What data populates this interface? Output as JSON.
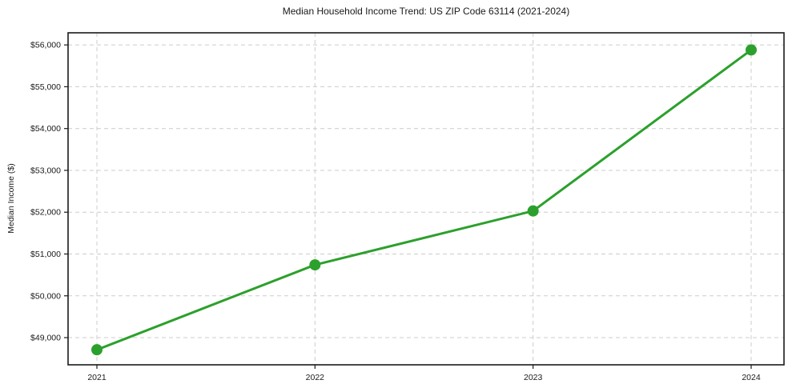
{
  "chart_data": {
    "type": "line",
    "title": "Median Household Income Trend: US ZIP Code 63114 (2021-2024)",
    "xlabel": "",
    "ylabel": "Median Income ($)",
    "categories": [
      "2021",
      "2022",
      "2023",
      "2024"
    ],
    "series": [
      {
        "name": "Median Household Income",
        "values": [
          48710,
          50740,
          52030,
          55880
        ],
        "color": "#2ca02c",
        "marker": "circle"
      }
    ],
    "ylim": [
      48350,
      56290
    ],
    "yticks": [
      49000,
      50000,
      51000,
      52000,
      53000,
      54000,
      55000,
      56000
    ],
    "ytick_labels": [
      "$49,000",
      "$50,000",
      "$51,000",
      "$52,000",
      "$53,000",
      "$54,000",
      "$55,000",
      "$56,000"
    ],
    "grid": "dashed both axes",
    "legend_position": "none"
  }
}
